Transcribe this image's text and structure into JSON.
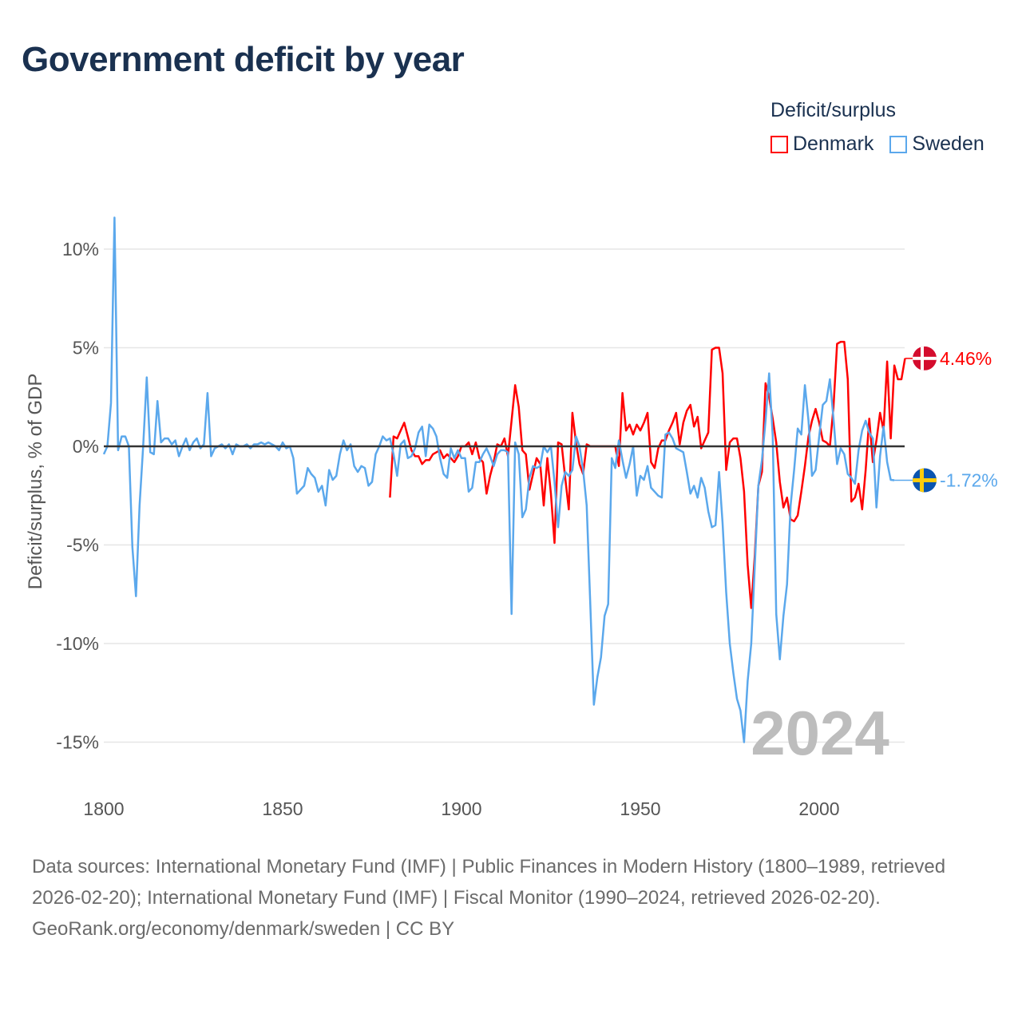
{
  "title": "Government deficit by year",
  "legend": {
    "title": "Deficit/surplus",
    "items": [
      {
        "name": "Denmark",
        "color": "#ff0000"
      },
      {
        "name": "Sweden",
        "color": "#5ba8ec"
      }
    ]
  },
  "footer": {
    "sources": "Data sources: International Monetary Fund (IMF) | Public Finances in Modern History (1800–1989, retrieved 2026-02-20); International Monetary Fund (IMF) | Fiscal Monitor (1990–2024, retrieved 2026-02-20).",
    "credit": "GeoRank.org/economy/denmark/sweden | CC BY"
  },
  "chart_data": {
    "type": "line",
    "title": "Government deficit by year",
    "xlabel": "",
    "ylabel": "Deficit/surplus, % of GDP",
    "xlim": [
      1800,
      2024
    ],
    "ylim": [
      -16,
      12
    ],
    "xticks": [
      {
        "value": 1800,
        "label": "1800"
      },
      {
        "value": 1850,
        "label": "1850"
      },
      {
        "value": 1900,
        "label": "1900"
      },
      {
        "value": 1950,
        "label": "1950"
      },
      {
        "value": 2000,
        "label": "2000"
      }
    ],
    "yticks": [
      {
        "value": 10,
        "label": "10%"
      },
      {
        "value": 5,
        "label": "5%"
      },
      {
        "value": 0,
        "label": "0%"
      },
      {
        "value": -5,
        "label": "-5%"
      },
      {
        "value": -10,
        "label": "-10%"
      },
      {
        "value": -15,
        "label": "-15%"
      }
    ],
    "year_watermark": "2024",
    "grid": true,
    "legend_position": "top-right",
    "series": [
      {
        "name": "Denmark",
        "color": "#ff0000",
        "end_label": "4.46%",
        "flag": "denmark",
        "start_year": 1880,
        "values": [
          -2.6,
          0.5,
          0.4,
          0.8,
          1.2,
          0.5,
          -0.2,
          -0.5,
          -0.5,
          -0.9,
          -0.7,
          -0.7,
          -0.4,
          -0.3,
          -0.2,
          -0.6,
          -0.4,
          -0.6,
          -0.8,
          -0.5,
          0,
          0,
          0.2,
          -0.4,
          0.2,
          -0.6,
          -0.8,
          -2.4,
          -1.5,
          -0.8,
          0.1,
          0,
          0.4,
          -0.5,
          1.3,
          3.1,
          2.0,
          -0.2,
          -0.4,
          -2.2,
          -1.4,
          -0.6,
          -0.9,
          -3.0,
          -0.6,
          -2.4,
          -4.9,
          0.2,
          0.1,
          -1.6,
          -3.2,
          1.7,
          0.2,
          -0.9,
          -1.4,
          0.1,
          0,
          0,
          0,
          0,
          0,
          0,
          0,
          0,
          -1.0,
          2.7,
          0.8,
          1.1,
          0.6,
          1.1,
          0.8,
          1.2,
          1.7,
          -0.8,
          -1.1,
          -0.1,
          0.3,
          0.3,
          0.8,
          1.2,
          1.7,
          0.1,
          1.2,
          1.8,
          2.1,
          1.0,
          1.5,
          -0.1,
          0.3,
          0.7,
          4.9,
          5.0,
          5.0,
          3.7,
          -1.2,
          0.2,
          0.4,
          0.4,
          -0.6,
          -2.3,
          -6.0,
          -8.2,
          -5.5,
          -2.0,
          -1.3,
          3.2,
          2.5,
          1.4,
          0.2,
          -1.8,
          -3.1,
          -2.6,
          -3.7,
          -3.8,
          -3.5,
          -2.3,
          -1.0,
          0.5,
          1.3,
          1.9,
          1.2,
          0.3,
          0.2,
          0,
          2.0,
          5.2,
          5.3,
          5.3,
          3.4,
          -2.8,
          -2.6,
          -1.9,
          -3.2,
          -1.2,
          1.4,
          -0.8,
          0.3,
          1.7,
          0.8,
          4.3,
          0.4,
          4.1,
          3.4,
          3.4,
          4.46
        ]
      },
      {
        "name": "Sweden",
        "color": "#5ba8ec",
        "end_label": "-1.72%",
        "flag": "sweden",
        "start_year": 1800,
        "values": [
          -0.4,
          0,
          2.2,
          11.6,
          -0.2,
          0.5,
          0.5,
          0,
          -5.1,
          -7.6,
          -3,
          0,
          3.5,
          -0.3,
          -0.4,
          2.3,
          0.2,
          0.4,
          0.4,
          0.1,
          0.3,
          -0.5,
          0,
          0.4,
          -0.2,
          0.2,
          0.4,
          -0.1,
          0.1,
          2.7,
          -0.5,
          -0.1,
          0,
          0.1,
          -0.1,
          0.1,
          -0.4,
          0.1,
          0,
          0,
          0.1,
          -0.1,
          0.1,
          0.1,
          0.2,
          0.1,
          0.2,
          0.1,
          0,
          -0.2,
          0.2,
          -0.1,
          0,
          -0.6,
          -2.4,
          -2.2,
          -2.0,
          -1.1,
          -1.4,
          -1.6,
          -2.3,
          -2.0,
          -3.0,
          -1.2,
          -1.7,
          -1.5,
          -0.4,
          0.3,
          -0.2,
          0.1,
          -1.0,
          -1.3,
          -1.0,
          -1.1,
          -2.0,
          -1.8,
          -0.4,
          0,
          0.5,
          0.3,
          0.4,
          -0.4,
          -1.5,
          0.1,
          0.3,
          -0.6,
          -0.5,
          -0.1,
          0.7,
          1.0,
          -0.5,
          1.1,
          0.9,
          0.5,
          -0.6,
          -1.4,
          -1.6,
          -0.1,
          -0.6,
          -0.2,
          -0.6,
          -0.6,
          -2.3,
          -2.1,
          -0.8,
          -0.8,
          -0.4,
          -0.1,
          -0.5,
          -1.0,
          -0.4,
          -0.2,
          -0.2,
          -0.3,
          -8.5,
          0.2,
          -0.4,
          -3.6,
          -3.2,
          -1.6,
          -1.0,
          -1.1,
          -1.0,
          0,
          -0.3,
          0,
          -1.8,
          -4.1,
          -2.0,
          -1.3,
          -1.5,
          -1.2,
          0.5,
          0,
          -1.2,
          -3.0,
          -8.0,
          -13.1,
          -11.7,
          -10.7,
          -8.6,
          -8.0,
          -0.6,
          -1.1,
          0.3,
          -0.7,
          -1.6,
          -0.9,
          0,
          -2.5,
          -1.5,
          -1.7,
          -1.0,
          -2.1,
          -2.3,
          -2.5,
          -2.6,
          0.6,
          0.7,
          0.4,
          -0.1,
          -0.2,
          -0.3,
          -1.3,
          -2.4,
          -2.0,
          -2.6,
          -1.6,
          -2.1,
          -3.3,
          -4.1,
          -4.0,
          -1.3,
          -3.9,
          -7.4,
          -10.0,
          -11.5,
          -12.8,
          -13.4,
          -15.0,
          -11.9,
          -10.0,
          -6.0,
          -2.0,
          -0.7,
          1.3,
          3.7,
          0.5,
          -8.5,
          -10.8,
          -8.6,
          -7.0,
          -3.0,
          -1.2,
          0.9,
          0.6,
          3.1,
          1.3,
          -1.5,
          -1.2,
          0.5,
          2.1,
          2.3,
          3.4,
          1.4,
          -0.9,
          -0.1,
          -0.4,
          -1.4,
          -1.6,
          -1.9,
          -0.2,
          0.8,
          1.3,
          0.7,
          0.4,
          -3.1,
          -0.5,
          1.0,
          -0.8,
          -1.7,
          -1.72
        ]
      }
    ]
  }
}
